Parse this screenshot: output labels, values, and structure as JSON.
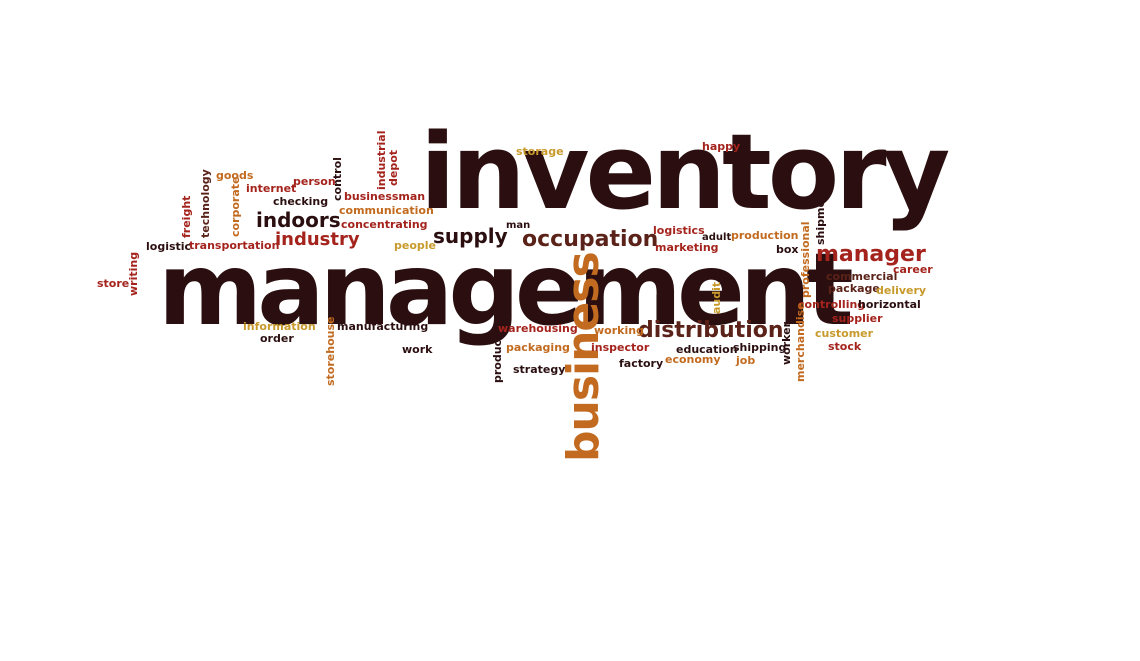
{
  "words": {
    "inventory": "inventory",
    "management": "management",
    "business": "business",
    "occupation": "occupation",
    "distribution": "distribution",
    "manager": "manager",
    "supply": "supply",
    "indoors": "indoors",
    "industry": "industry",
    "storage": "storage",
    "happy": "happy",
    "goods": "goods",
    "internet": "internet",
    "person": "person",
    "checking": "checking",
    "businessman": "businessman",
    "communication": "communication",
    "concentrating": "concentrating",
    "logistic": "logistic",
    "transportation": "transportation",
    "people": "people",
    "man": "man",
    "logistics": "logistics",
    "adult": "adult",
    "production": "production",
    "marketing": "marketing",
    "box": "box",
    "commercial": "commercial",
    "career": "career",
    "package": "package",
    "delivery": "delivery",
    "controlling": "controlling",
    "horizontal": "horizontal",
    "supplier": "supplier",
    "customer": "customer",
    "stock": "stock",
    "store": "store",
    "information": "information",
    "order": "order",
    "manufacturing": "manufacturing",
    "work": "work",
    "warehousing": "warehousing",
    "packaging": "packaging",
    "strategy": "strategy",
    "working": "working",
    "inspector": "inspector",
    "factory": "factory",
    "education": "education",
    "economy": "economy",
    "shipping": "shipping",
    "job": "job",
    "freight": "freight",
    "technology": "technology",
    "corporate": "corporate",
    "control": "control",
    "industrial": "industrial",
    "depot": "depot",
    "writing": "writing",
    "storehouse": "storehouse",
    "product": "product",
    "audit": "audit",
    "professional": "professional",
    "shipment": "shipment",
    "merchandise": "merchandise",
    "worker": "worker"
  },
  "colors": {
    "dark": "#2b0f10",
    "red": "#a4231c",
    "orange": "#c26a1f",
    "gold": "#c79a2b",
    "brown": "#5a2218"
  }
}
